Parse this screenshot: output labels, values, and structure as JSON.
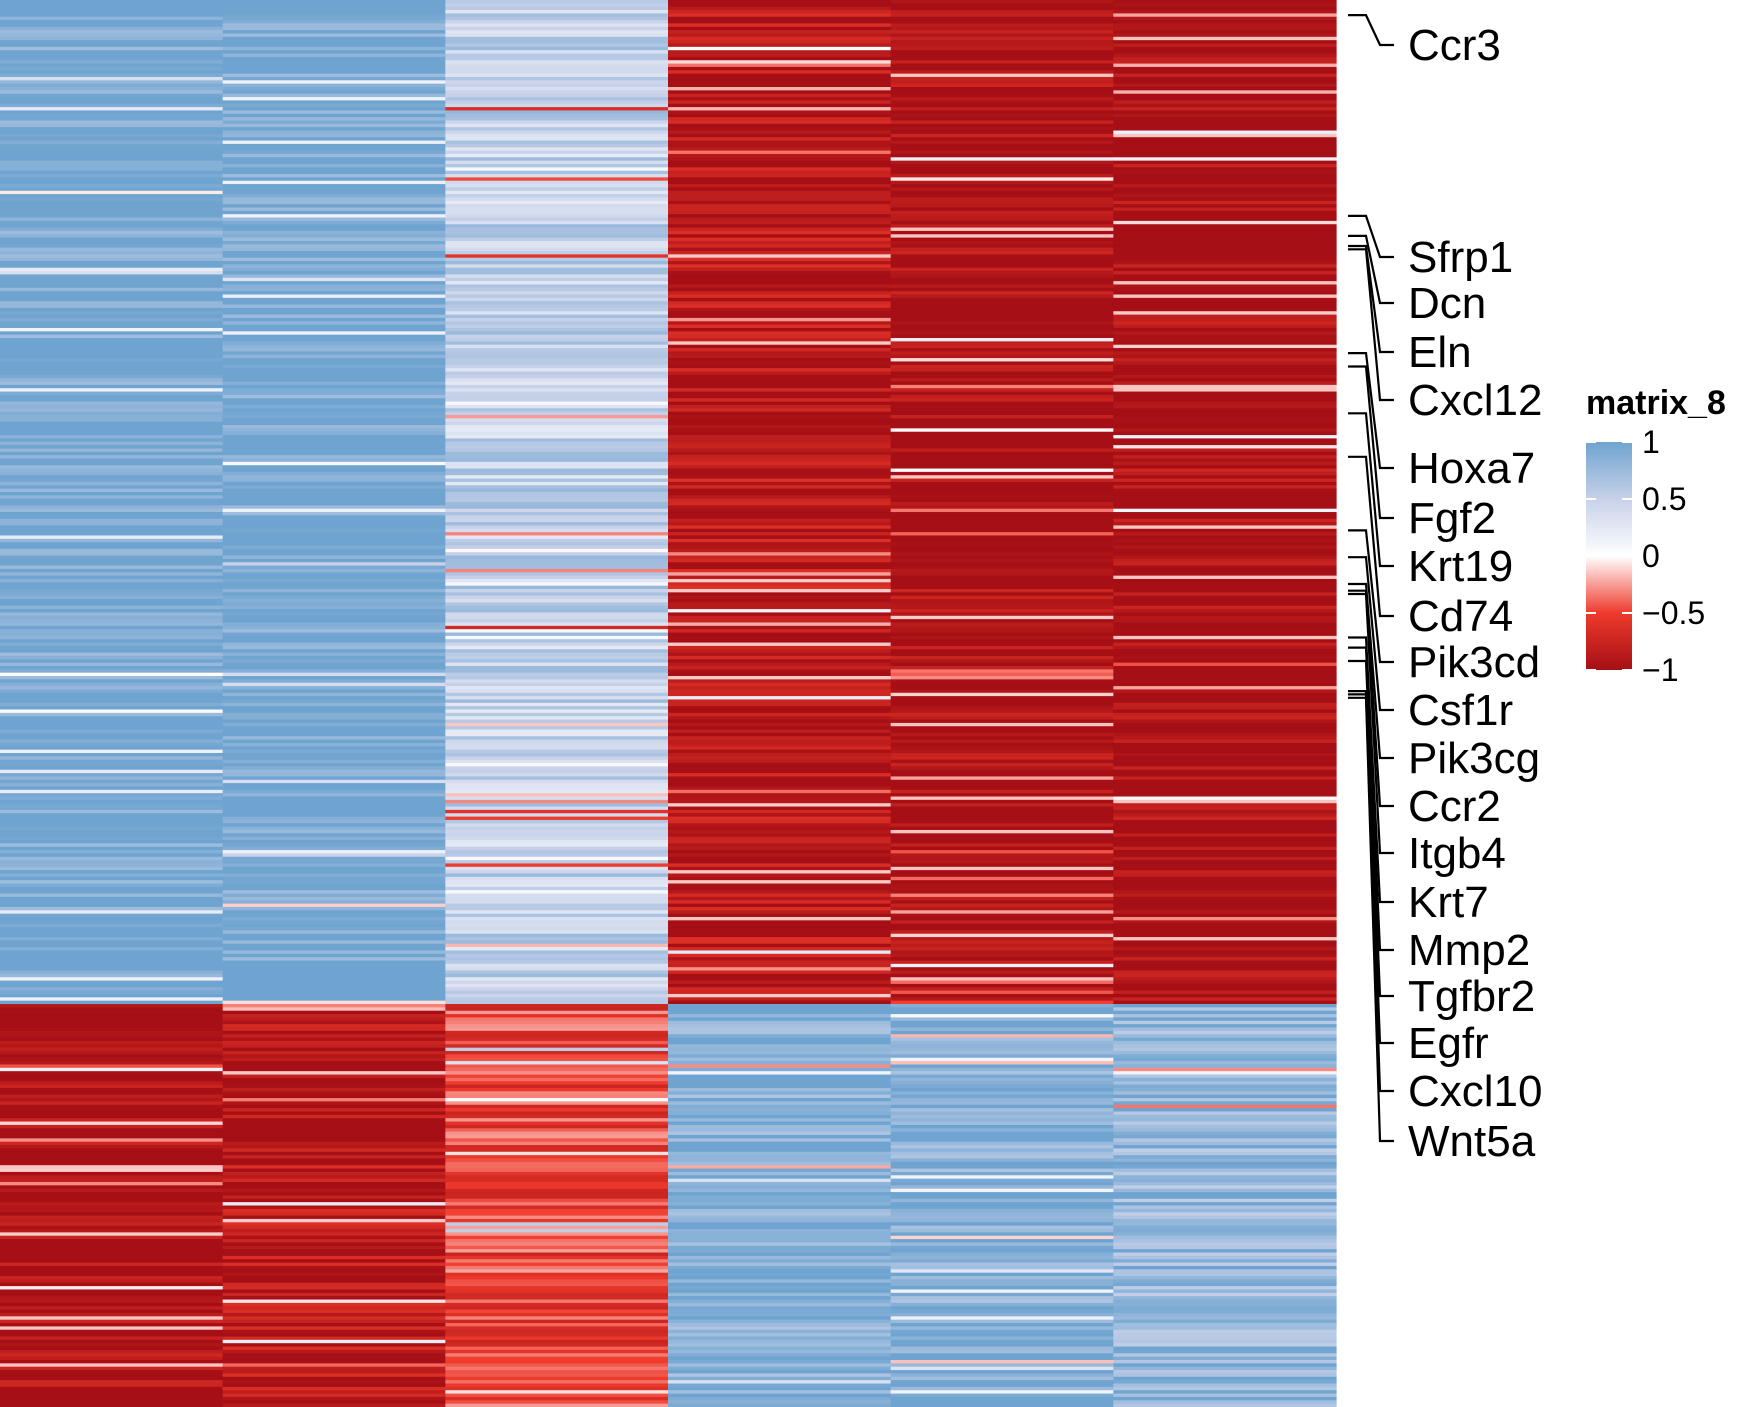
{
  "chart_data": {
    "type": "heatmap",
    "n_columns": 6,
    "n_rows_block_top": 300,
    "n_rows_block_bottom": 120,
    "column_profile": {
      "top_block": [
        1,
        1,
        0.5,
        -0.9,
        -1,
        -1
      ],
      "bottom_block": [
        -1,
        -0.9,
        -0.5,
        0.9,
        0.9,
        0.8
      ]
    },
    "color_scale": {
      "min": -1,
      "max": 1,
      "stops": [
        {
          "value": 1,
          "color": "#6fa4d0"
        },
        {
          "value": 0.5,
          "color": "#c7d1e9"
        },
        {
          "value": 0,
          "color": "#ffffff"
        },
        {
          "value": -0.5,
          "color": "#ef3a2c"
        },
        {
          "value": -1,
          "color": "#a50f15"
        }
      ]
    },
    "row_labels": [
      {
        "label": "Ccr3",
        "row": 4
      },
      {
        "label": "Sfrp1",
        "row": 64
      },
      {
        "label": "Dcn",
        "row": 70
      },
      {
        "label": "Eln",
        "row": 73
      },
      {
        "label": "Cxcl12",
        "row": 74
      },
      {
        "label": "Hoxa7",
        "row": 105
      },
      {
        "label": "Fgf2",
        "row": 109
      },
      {
        "label": "Krt19",
        "row": 123
      },
      {
        "label": "Cd74",
        "row": 136
      },
      {
        "label": "Pik3cd",
        "row": 158
      },
      {
        "label": "Csf1r",
        "row": 166
      },
      {
        "label": "Pik3cg",
        "row": 174
      },
      {
        "label": "Ccr2",
        "row": 176
      },
      {
        "label": "Itgb4",
        "row": 177
      },
      {
        "label": "Krt7",
        "row": 190
      },
      {
        "label": "Mmp2",
        "row": 193
      },
      {
        "label": "Tgfbr2",
        "row": 197
      },
      {
        "label": "Egfr",
        "row": 206
      },
      {
        "label": "Cxcl10",
        "row": 207
      },
      {
        "label": "Wnt5a",
        "row": 208
      }
    ],
    "legend": {
      "title": "matrix_8",
      "ticks": [
        "1",
        "0.5",
        "0",
        "−1",
        "−0.5"
      ],
      "tick_values": [
        1,
        0.5,
        0,
        -1,
        -0.5
      ]
    }
  }
}
